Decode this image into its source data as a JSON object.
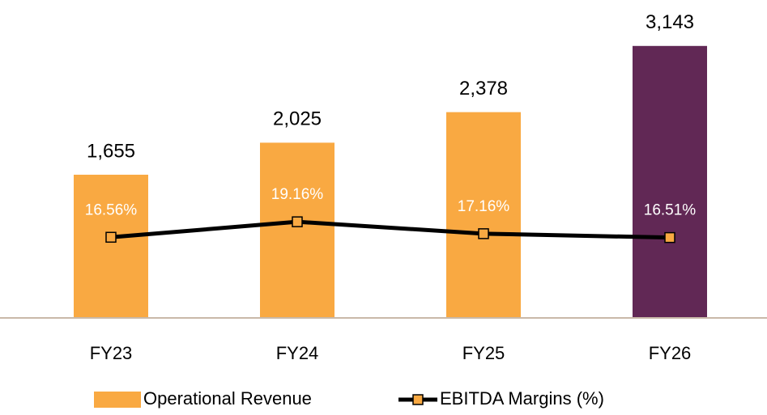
{
  "chart_data": {
    "type": "bar-line",
    "categories": [
      "FY23",
      "FY24",
      "FY25",
      "FY26"
    ],
    "series": [
      {
        "name": "Operational Revenue",
        "type": "bar",
        "color": "#f9a942",
        "colors": [
          "#f9a942",
          "#f9a942",
          "#f9a942",
          "#612855"
        ],
        "values": [
          1655,
          2025,
          2378,
          3143
        ],
        "value_labels": [
          "1,655",
          "2,025",
          "2,378",
          "3,143"
        ]
      },
      {
        "name": "EBITDA Margins (%)",
        "type": "line",
        "axis": "y2",
        "color": "#000000",
        "marker_color": "#f9a942",
        "values": [
          16.56,
          19.16,
          17.16,
          16.51
        ],
        "value_labels": [
          "16.56%",
          "19.16%",
          "17.16%",
          "16.51%"
        ]
      }
    ],
    "ylim": [
      0,
      3300
    ],
    "y2lim": [
      3,
      51
    ],
    "legend": "bottom"
  }
}
